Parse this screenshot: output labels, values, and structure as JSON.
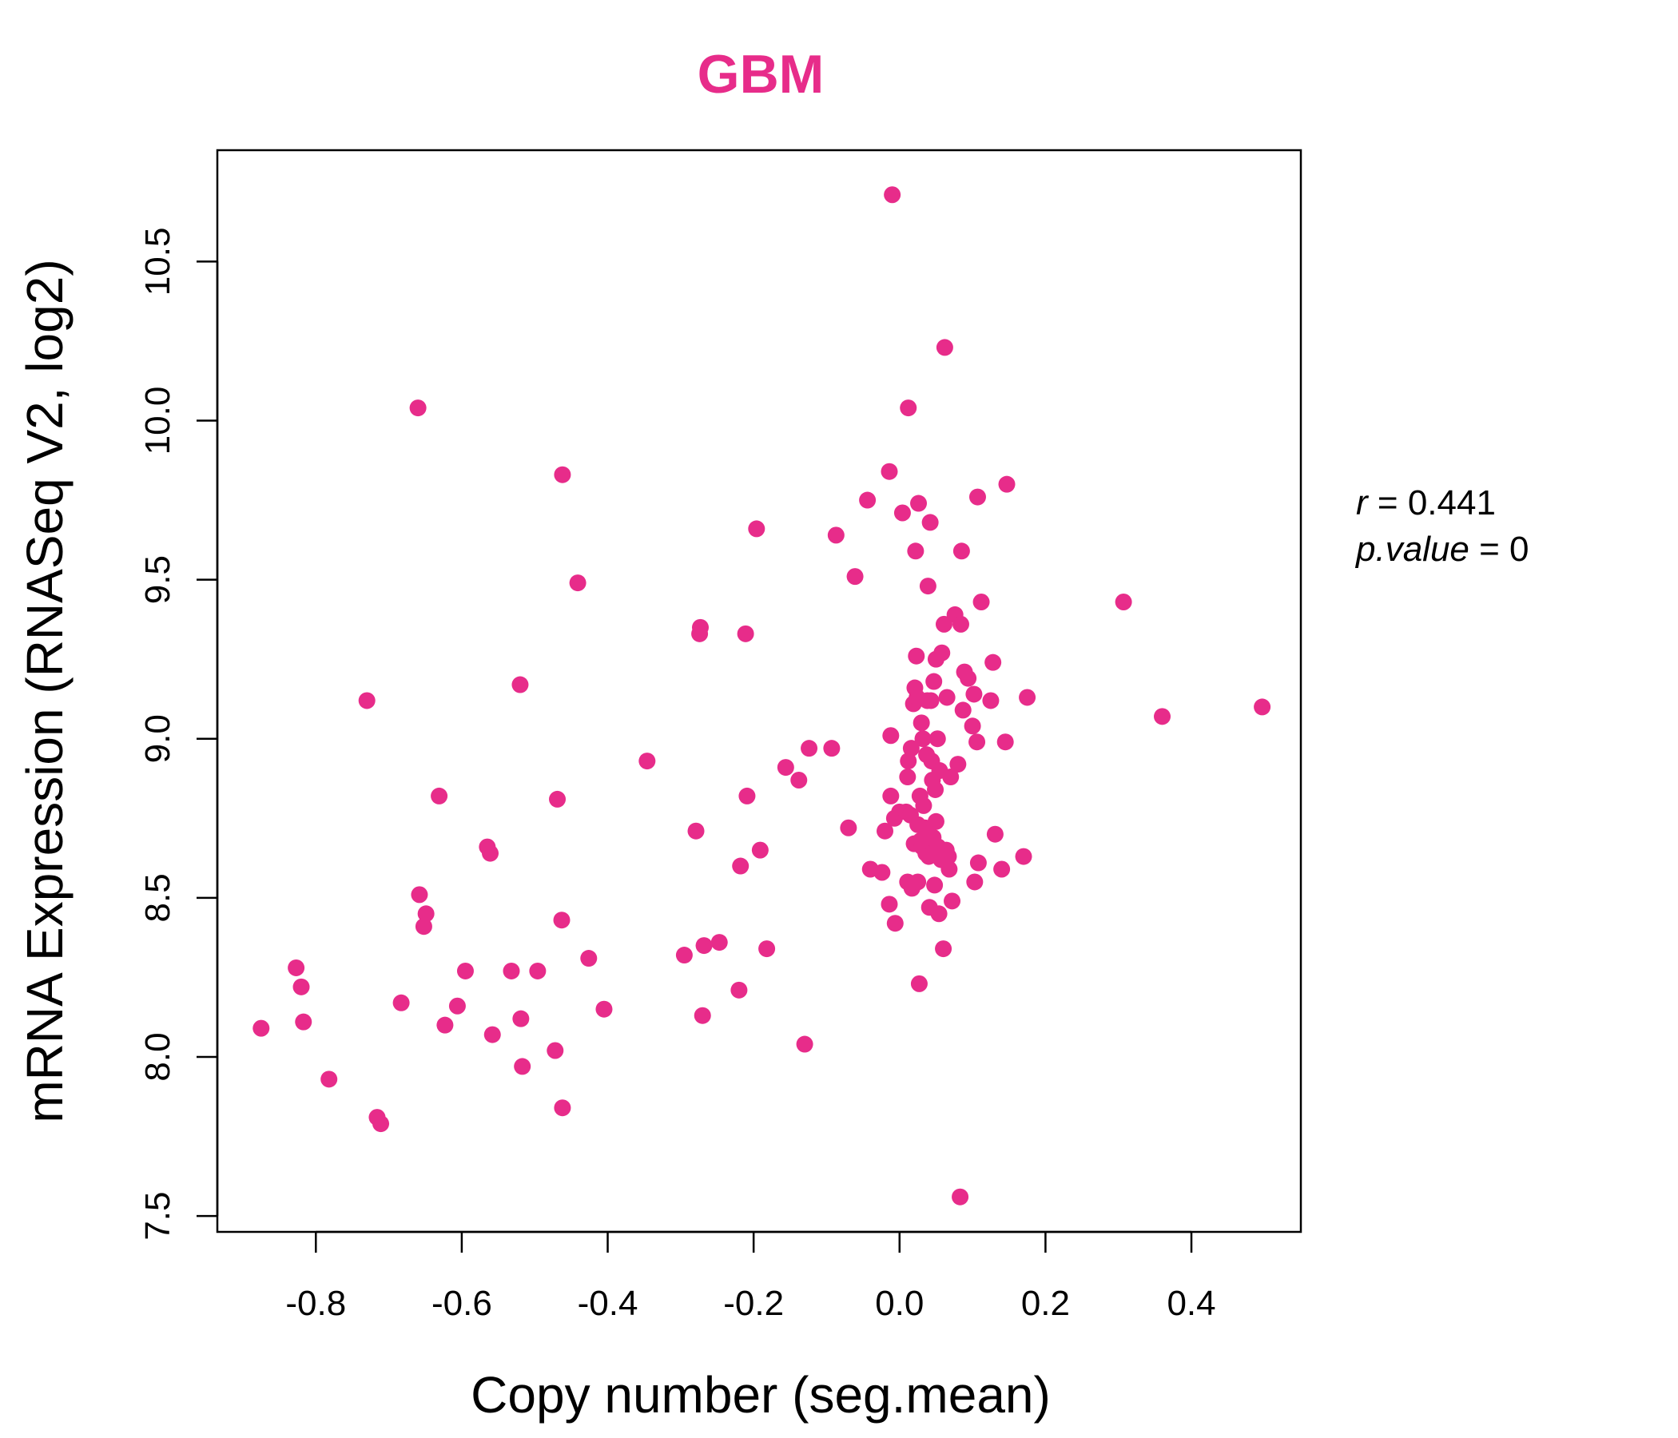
{
  "chart_data": {
    "type": "scatter",
    "title": "GBM",
    "xlabel": "Copy number (seg.mean)",
    "ylabel": "mRNA Expression (RNASeq V2, log2)",
    "xlim": [
      -0.935,
      0.55
    ],
    "ylim": [
      7.45,
      10.85
    ],
    "xticks": [
      -0.8,
      -0.6,
      -0.4,
      -0.2,
      0.0,
      0.2,
      0.4
    ],
    "xtick_labels": [
      "-0.8",
      "-0.6",
      "-0.4",
      "-0.2",
      "0.0",
      "0.2",
      "0.4"
    ],
    "yticks": [
      7.5,
      8.0,
      8.5,
      9.0,
      9.5,
      10.0,
      10.5
    ],
    "ytick_labels": [
      "7.5",
      "8.0",
      "8.5",
      "9.0",
      "9.5",
      "10.0",
      "10.5"
    ],
    "grid": false,
    "point_color": "#E72C8A",
    "annotation": {
      "r_label": "r",
      "r_value": "0.441",
      "p_label": "p.value",
      "p_value": "0"
    },
    "points": [
      [
        -0.875,
        8.09
      ],
      [
        -0.827,
        8.28
      ],
      [
        -0.82,
        8.22
      ],
      [
        -0.817,
        8.11
      ],
      [
        -0.782,
        7.93
      ],
      [
        -0.73,
        9.12
      ],
      [
        -0.716,
        7.81
      ],
      [
        -0.711,
        7.79
      ],
      [
        -0.683,
        8.17
      ],
      [
        -0.66,
        10.04
      ],
      [
        -0.658,
        8.51
      ],
      [
        -0.652,
        8.41
      ],
      [
        -0.649,
        8.45
      ],
      [
        -0.631,
        8.82
      ],
      [
        -0.623,
        8.1
      ],
      [
        -0.606,
        8.16
      ],
      [
        -0.595,
        8.27
      ],
      [
        -0.565,
        8.66
      ],
      [
        -0.561,
        8.64
      ],
      [
        -0.558,
        8.07
      ],
      [
        -0.532,
        8.27
      ],
      [
        -0.52,
        9.17
      ],
      [
        -0.519,
        8.12
      ],
      [
        -0.517,
        7.97
      ],
      [
        -0.496,
        8.27
      ],
      [
        -0.472,
        8.02
      ],
      [
        -0.469,
        8.81
      ],
      [
        -0.463,
        8.43
      ],
      [
        -0.462,
        9.83
      ],
      [
        -0.462,
        7.84
      ],
      [
        -0.441,
        9.49
      ],
      [
        -0.426,
        8.31
      ],
      [
        -0.405,
        8.15
      ],
      [
        -0.346,
        8.93
      ],
      [
        -0.295,
        8.32
      ],
      [
        -0.279,
        8.71
      ],
      [
        -0.273,
        9.35
      ],
      [
        -0.274,
        9.33
      ],
      [
        -0.27,
        8.13
      ],
      [
        -0.268,
        8.35
      ],
      [
        -0.247,
        8.36
      ],
      [
        -0.22,
        8.21
      ],
      [
        -0.218,
        8.6
      ],
      [
        -0.211,
        9.33
      ],
      [
        -0.209,
        8.82
      ],
      [
        -0.196,
        9.66
      ],
      [
        -0.191,
        8.65
      ],
      [
        -0.182,
        8.34
      ],
      [
        -0.156,
        8.91
      ],
      [
        -0.138,
        8.87
      ],
      [
        -0.13,
        8.04
      ],
      [
        -0.124,
        8.97
      ],
      [
        -0.093,
        8.97
      ],
      [
        -0.087,
        9.64
      ],
      [
        -0.07,
        8.72
      ],
      [
        -0.061,
        9.51
      ],
      [
        -0.044,
        9.75
      ],
      [
        -0.04,
        8.59
      ],
      [
        -0.024,
        8.58
      ],
      [
        -0.02,
        8.71
      ],
      [
        -0.014,
        9.84
      ],
      [
        -0.014,
        8.48
      ],
      [
        -0.012,
        9.01
      ],
      [
        -0.012,
        8.82
      ],
      [
        -0.01,
        10.71
      ],
      [
        -0.006,
        8.42
      ],
      [
        -0.007,
        8.75
      ],
      [
        0.0,
        8.77
      ],
      [
        0.004,
        9.71
      ],
      [
        0.009,
        8.77
      ],
      [
        0.011,
        8.55
      ],
      [
        0.011,
        8.88
      ],
      [
        0.012,
        8.93
      ],
      [
        0.012,
        10.04
      ],
      [
        0.015,
        8.76
      ],
      [
        0.016,
        8.97
      ],
      [
        0.017,
        8.53
      ],
      [
        0.019,
        9.11
      ],
      [
        0.02,
        8.67
      ],
      [
        0.021,
        9.16
      ],
      [
        0.022,
        9.59
      ],
      [
        0.023,
        9.26
      ],
      [
        0.024,
        9.13
      ],
      [
        0.025,
        8.73
      ],
      [
        0.025,
        8.55
      ],
      [
        0.026,
        9.74
      ],
      [
        0.027,
        8.23
      ],
      [
        0.028,
        8.82
      ],
      [
        0.029,
        8.68
      ],
      [
        0.03,
        9.05
      ],
      [
        0.031,
        8.66
      ],
      [
        0.032,
        9.0
      ],
      [
        0.033,
        8.79
      ],
      [
        0.035,
        8.72
      ],
      [
        0.036,
        8.64
      ],
      [
        0.037,
        8.95
      ],
      [
        0.038,
        9.12
      ],
      [
        0.039,
        9.48
      ],
      [
        0.04,
        8.63
      ],
      [
        0.041,
        8.47
      ],
      [
        0.042,
        9.68
      ],
      [
        0.043,
        9.12
      ],
      [
        0.044,
        8.93
      ],
      [
        0.045,
        8.87
      ],
      [
        0.046,
        8.69
      ],
      [
        0.047,
        9.18
      ],
      [
        0.048,
        8.54
      ],
      [
        0.049,
        8.84
      ],
      [
        0.05,
        8.74
      ],
      [
        0.05,
        9.25
      ],
      [
        0.052,
        9.0
      ],
      [
        0.053,
        8.66
      ],
      [
        0.054,
        8.45
      ],
      [
        0.055,
        8.9
      ],
      [
        0.057,
        8.62
      ],
      [
        0.058,
        9.27
      ],
      [
        0.06,
        8.34
      ],
      [
        0.061,
        9.36
      ],
      [
        0.062,
        10.23
      ],
      [
        0.064,
        8.65
      ],
      [
        0.065,
        9.13
      ],
      [
        0.067,
        8.63
      ],
      [
        0.068,
        8.59
      ],
      [
        0.07,
        8.88
      ],
      [
        0.072,
        8.49
      ],
      [
        0.076,
        9.39
      ],
      [
        0.08,
        8.92
      ],
      [
        0.083,
        7.56
      ],
      [
        0.084,
        9.36
      ],
      [
        0.085,
        9.59
      ],
      [
        0.087,
        9.09
      ],
      [
        0.089,
        9.21
      ],
      [
        0.094,
        9.19
      ],
      [
        0.1,
        9.04
      ],
      [
        0.102,
        9.14
      ],
      [
        0.103,
        8.55
      ],
      [
        0.106,
        8.99
      ],
      [
        0.107,
        9.76
      ],
      [
        0.108,
        8.61
      ],
      [
        0.112,
        9.43
      ],
      [
        0.125,
        9.12
      ],
      [
        0.128,
        9.24
      ],
      [
        0.131,
        8.7
      ],
      [
        0.14,
        8.59
      ],
      [
        0.145,
        8.99
      ],
      [
        0.147,
        9.8
      ],
      [
        0.17,
        8.63
      ],
      [
        0.175,
        9.13
      ],
      [
        0.307,
        9.43
      ],
      [
        0.36,
        9.07
      ],
      [
        0.497,
        9.1
      ]
    ]
  }
}
